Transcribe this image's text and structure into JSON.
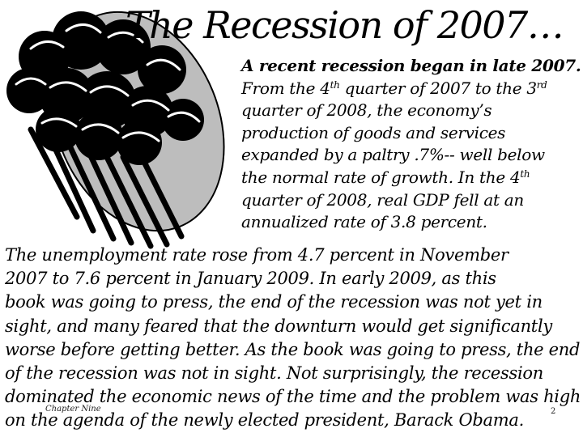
{
  "slide": {
    "title": "The Recession of 2007…",
    "intro": {
      "line1": "A recent recession began in late 2007.",
      "line2_a": "From the 4",
      "line2_sup1": "th",
      "line2_b": " quarter of 2007 to the 3",
      "line2_sup2": "rd",
      "line3": "quarter of 2008, the economy’s",
      "line4": "production of  goods and services",
      "line5": "expanded by a paltry .7%-- well below",
      "line6_a": "the normal rate of growth. In the 4",
      "line6_sup": "th",
      "line7": "quarter of 2008, real GDP fell at an",
      "line8": "annualized rate of 3.8 percent."
    },
    "body": [
      "The unemployment rate rose from 4.7 percent in November",
      "2007 to 7.6 percent in January 2009. In early 2009, as this",
      "book was going to press, the end of the recession was not yet in",
      "sight, and many feared that the downturn would get significantly",
      "worse before getting better. As the book was going to press, the end",
      "of the recession was not in sight. Not surprisingly, the recession",
      "dominated the economic news of the time and the problem was high",
      "on the agenda of the newly elected president, Barack Obama."
    ],
    "footer_label": "Chapter Nine",
    "page_number": "2"
  },
  "colors": {
    "cloud_gray": "#bdbdbd",
    "ink": "#000000",
    "background": "#ffffff"
  },
  "icons": {
    "clipart": "storm-cloud-rain-icon"
  }
}
